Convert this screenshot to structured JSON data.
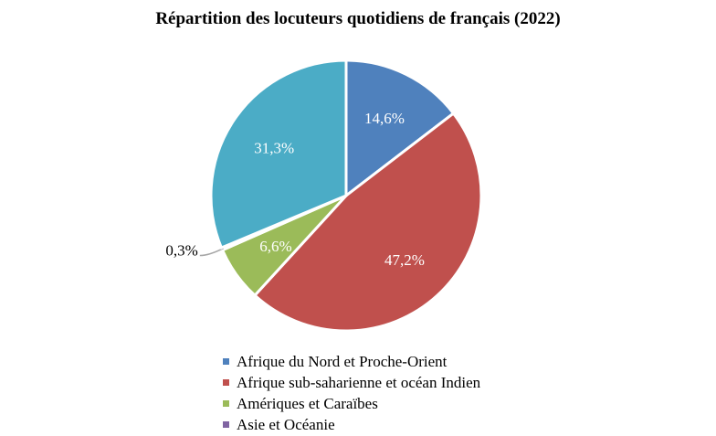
{
  "chart_data": {
    "type": "pie",
    "title": "Répartition des locuteurs quotidiens de français (2022)",
    "slices": [
      {
        "name": "Afrique du Nord et Proche-Orient",
        "value": 14.6,
        "label": "14,6%",
        "color": "#4f81bd"
      },
      {
        "name": "Afrique sub-saharienne et océan Indien",
        "value": 47.2,
        "label": "47,2%",
        "color": "#c0504d"
      },
      {
        "name": "Amériques et Caraïbes",
        "value": 6.6,
        "label": "6,6%",
        "color": "#9bbb59"
      },
      {
        "name": "Asie et Océanie",
        "value": 0.3,
        "label": "0,3%",
        "color": "#8064a2"
      },
      {
        "name": "",
        "value": 31.3,
        "label": "31,3%",
        "color": "#4bacc6"
      }
    ],
    "legend": [
      {
        "label": "Afrique du Nord et Proche-Orient",
        "color": "#4f81bd"
      },
      {
        "label": "Afrique sub-saharienne et océan Indien",
        "color": "#c0504d"
      },
      {
        "label": "Amériques et Caraïbes",
        "color": "#9bbb59"
      },
      {
        "label": "Asie et Océanie",
        "color": "#8064a2"
      }
    ],
    "legend_position": "bottom"
  }
}
